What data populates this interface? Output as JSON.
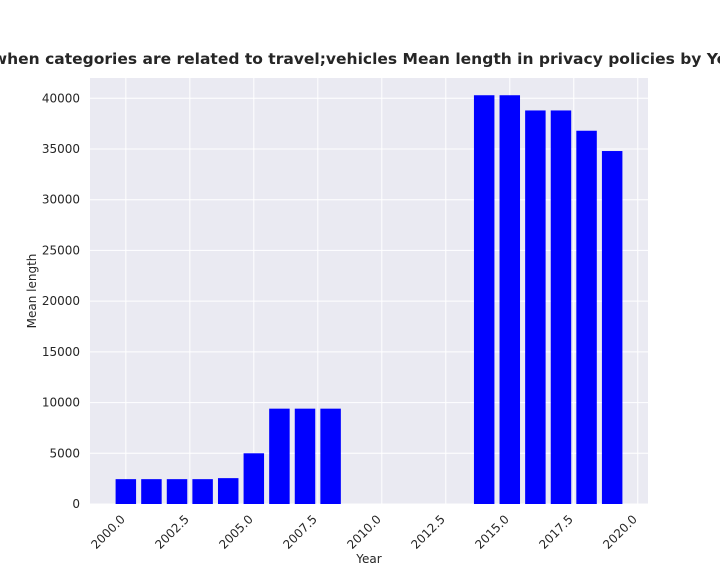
{
  "chart_data": {
    "type": "bar",
    "title": "when categories are related to travel;vehicles Mean length in privacy policies by Year",
    "xlabel": "Year",
    "ylabel": "Mean length",
    "x": [
      2000,
      2001,
      2002,
      2003,
      2004,
      2005,
      2006,
      2007,
      2008,
      2014,
      2015,
      2016,
      2017,
      2018,
      2019
    ],
    "values": [
      2450,
      2450,
      2450,
      2450,
      2550,
      5000,
      9400,
      9400,
      9400,
      40300,
      40300,
      38800,
      38800,
      36800,
      34800
    ],
    "xlim": [
      1998.6,
      2020.4
    ],
    "ylim": [
      0,
      42000
    ],
    "xticks": [
      2000,
      2002.5,
      2005,
      2007.5,
      2010,
      2012.5,
      2015,
      2017.5,
      2020
    ],
    "xtick_labels": [
      "2000.0",
      "2002.5",
      "2005.0",
      "2007.5",
      "2010.0",
      "2012.5",
      "2015.0",
      "2017.5",
      "2020.0"
    ],
    "yticks": [
      0,
      5000,
      10000,
      15000,
      20000,
      25000,
      30000,
      35000,
      40000
    ],
    "ytick_labels": [
      "0",
      "5000",
      "10000",
      "15000",
      "20000",
      "25000",
      "30000",
      "35000",
      "40000"
    ],
    "grid": true,
    "colors": {
      "bar": "#0000ff",
      "plot_background": "#eaeaf2",
      "grid": "#ffffff",
      "text": "#262626"
    }
  }
}
